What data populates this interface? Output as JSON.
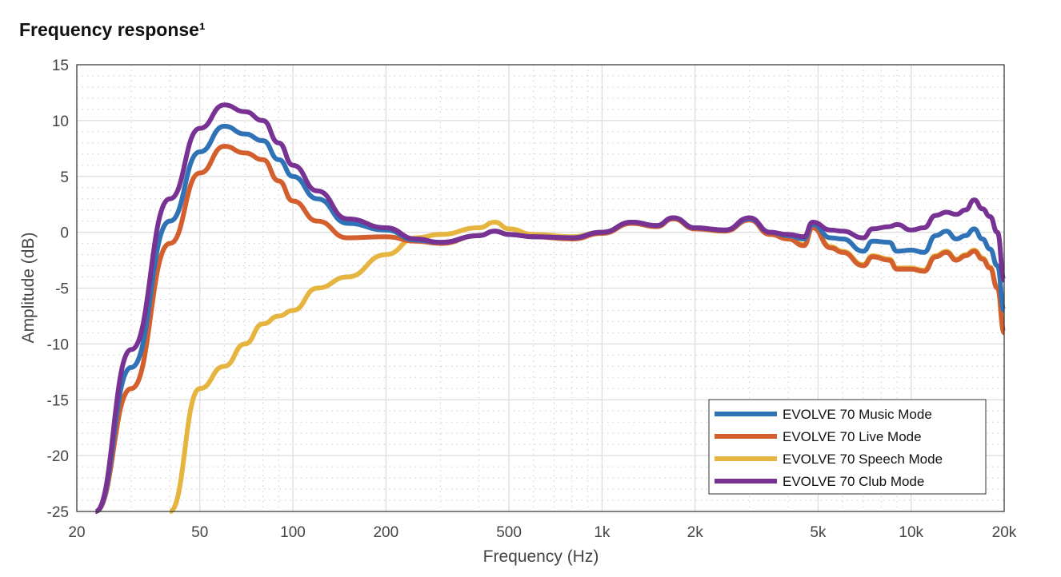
{
  "title": "Frequency response¹",
  "chart_data": {
    "type": "line",
    "title": "Frequency response¹",
    "xlabel": "Frequency (Hz)",
    "ylabel": "Amplitude (dB)",
    "xscale": "log",
    "xlim": [
      20,
      20000
    ],
    "ylim": [
      -25,
      15
    ],
    "xticks": [
      20,
      50,
      100,
      200,
      500,
      1000,
      2000,
      5000,
      10000,
      20000
    ],
    "xtick_labels": [
      "20",
      "50",
      "100",
      "200",
      "500",
      "1k",
      "2k",
      "5k",
      "10k",
      "20k"
    ],
    "yticks": [
      15,
      10,
      5,
      0,
      -5,
      -10,
      -15,
      -20,
      -25
    ],
    "ytick_labels": [
      "15",
      "10",
      "5",
      "0",
      "-5",
      "-10",
      "-15",
      "-20",
      "-25"
    ],
    "grid": true,
    "legend_position": "bottom-right",
    "x": [
      23,
      30,
      40,
      50,
      60,
      70,
      80,
      90,
      100,
      120,
      150,
      200,
      250,
      300,
      400,
      450,
      500,
      600,
      800,
      1000,
      1250,
      1500,
      1700,
      2000,
      2500,
      3000,
      3500,
      4000,
      4500,
      4800,
      5500,
      6000,
      7000,
      7500,
      8500,
      9000,
      10000,
      11000,
      12000,
      13000,
      14000,
      15000,
      16000,
      17000,
      18000,
      19000,
      20000
    ],
    "series": [
      {
        "name": "EVOLVE 70 Music Mode",
        "color": "#2f72b6",
        "values": [
          -25,
          -12.1,
          1,
          7.2,
          9.5,
          8.8,
          8.2,
          6.5,
          5,
          3,
          0.8,
          0.2,
          -0.7,
          -0.9,
          -0.3,
          0.1,
          -0.2,
          -0.4,
          -0.5,
          0,
          0.9,
          0.6,
          1.3,
          0.4,
          0.2,
          1.2,
          0,
          -0.3,
          -0.6,
          0.7,
          -0.5,
          -0.6,
          -1.7,
          -0.8,
          -0.9,
          -1.7,
          -1.6,
          -1.8,
          -0.3,
          0.1,
          -0.6,
          -0.3,
          0.3,
          -0.6,
          -1.5,
          -3,
          -7
        ]
      },
      {
        "name": "EVOLVE 70 Live Mode",
        "color": "#d35f2f",
        "values": [
          -25,
          -14,
          -1,
          5.3,
          7.7,
          7.1,
          6.5,
          4.6,
          2.8,
          1,
          -0.5,
          -0.4,
          -0.8,
          -1,
          -0.3,
          0.1,
          -0.2,
          -0.4,
          -0.6,
          -0.1,
          0.8,
          0.5,
          1.2,
          0.3,
          0.1,
          1.1,
          -0.2,
          -0.6,
          -1.2,
          0.4,
          -1.4,
          -1.8,
          -3,
          -2.2,
          -2.5,
          -3.3,
          -3.3,
          -3.5,
          -2.2,
          -1.8,
          -2.5,
          -2.1,
          -1.7,
          -2.4,
          -3.2,
          -5,
          -9
        ]
      },
      {
        "name": "EVOLVE 70 Speech Mode",
        "color": "#e5b53f",
        "values": [
          null,
          null,
          -25,
          -14,
          -12,
          -10,
          -8.2,
          -7.5,
          -7,
          -5,
          -4,
          -2,
          -0.5,
          -0.2,
          0.4,
          0.9,
          0.3,
          -0.2,
          -0.4,
          0,
          0.9,
          0.6,
          1.3,
          0.4,
          0.2,
          1.2,
          -0.1,
          -0.5,
          -1.1,
          0.5,
          -1.3,
          -1.7,
          -2.9,
          -2.1,
          -2.4,
          -3.2,
          -3.2,
          -3.4,
          -2.1,
          -1.7,
          -2.4,
          -2,
          -1.6,
          -2.3,
          -3.1,
          -4.9,
          -8.8
        ]
      },
      {
        "name": "EVOLVE 70 Club Mode",
        "color": "#773293",
        "values": [
          -25,
          -10.5,
          3,
          9.3,
          11.4,
          10.8,
          10,
          8,
          6,
          3.7,
          1.2,
          0.4,
          -0.6,
          -0.9,
          -0.3,
          0.1,
          -0.2,
          -0.4,
          -0.5,
          0,
          0.9,
          0.6,
          1.3,
          0.4,
          0.2,
          1.3,
          0,
          -0.2,
          -0.4,
          0.9,
          0.2,
          0.1,
          -0.5,
          0.3,
          0.5,
          0.7,
          0.2,
          0.4,
          1.5,
          1.8,
          1.6,
          2,
          2.9,
          2.1,
          1.4,
          0,
          -4.3
        ]
      }
    ]
  }
}
